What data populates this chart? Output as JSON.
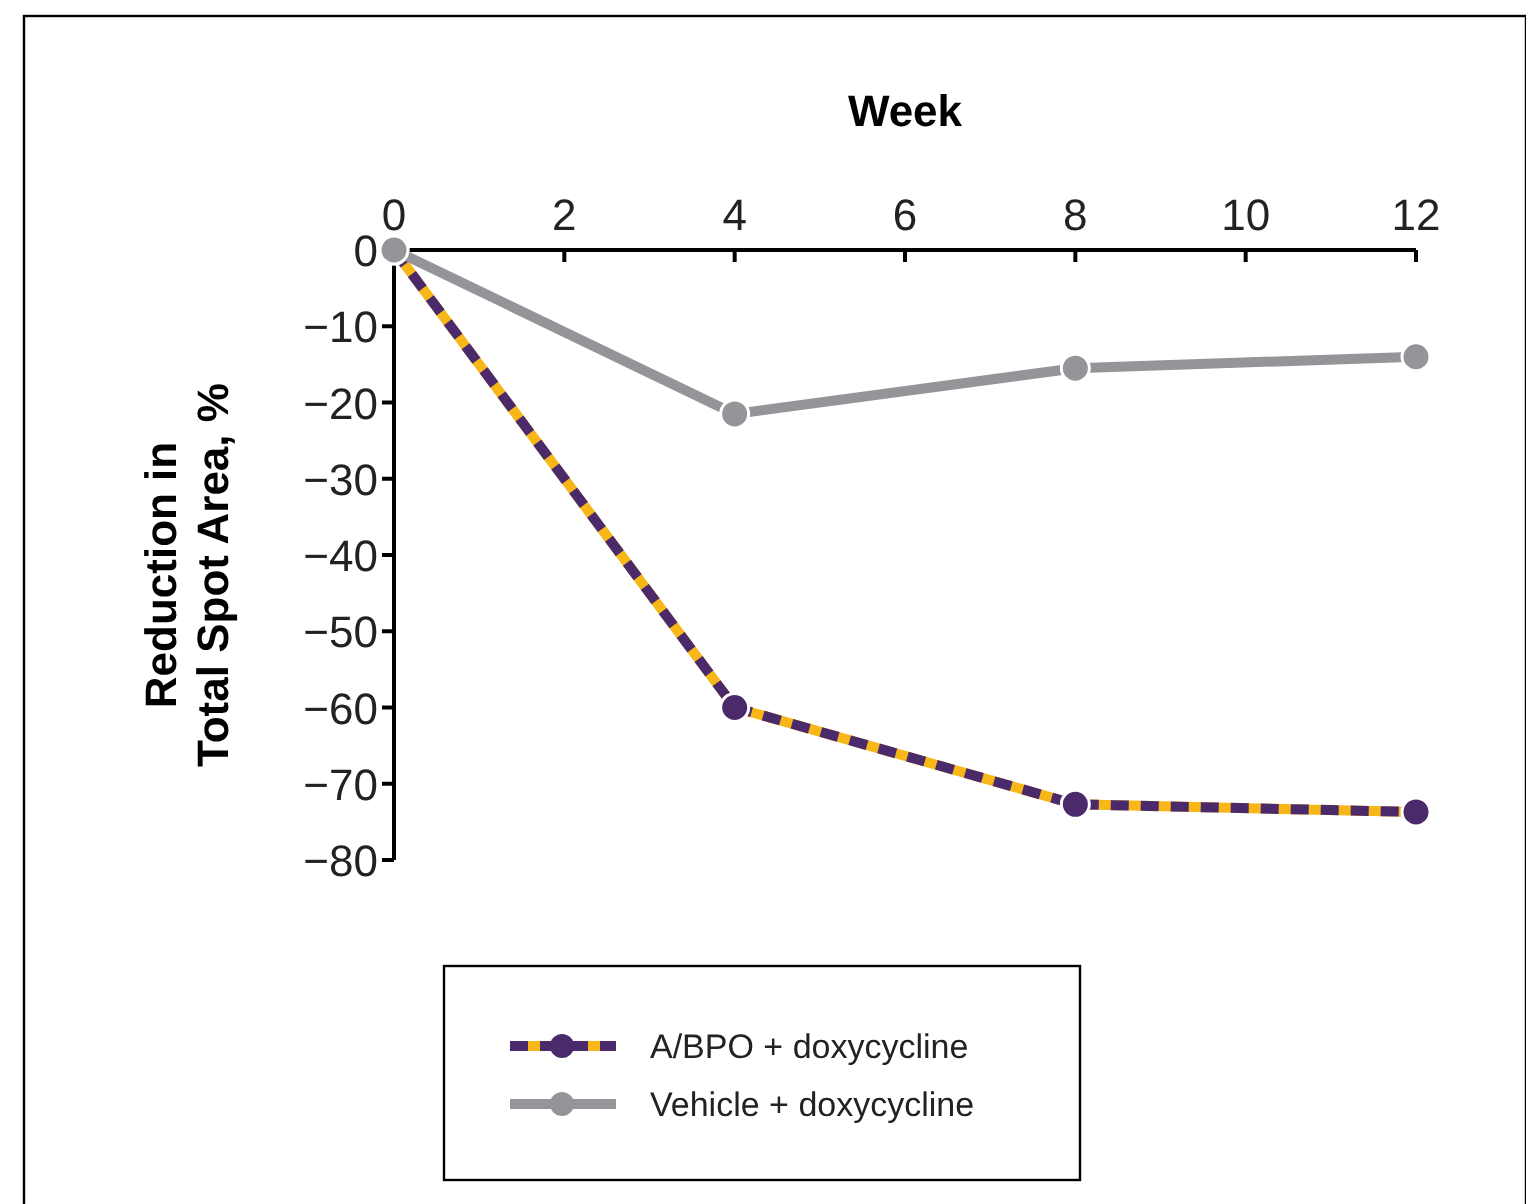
{
  "chart_data": {
    "type": "line",
    "xlabel": "Week",
    "ylabel": "Reduction in\nTotal Spot Area, %",
    "x": [
      0,
      4,
      8,
      12
    ],
    "xlim": [
      0,
      12
    ],
    "xticks": [
      0,
      2,
      4,
      6,
      8,
      10,
      12
    ],
    "ylim": [
      -80,
      0
    ],
    "yticks": [
      {
        "value": -80,
        "label": "−80"
      },
      {
        "value": -70,
        "label": "−70"
      },
      {
        "value": -60,
        "label": "−60"
      },
      {
        "value": -50,
        "label": "−50"
      },
      {
        "value": -40,
        "label": "−40"
      },
      {
        "value": -30,
        "label": "−30"
      },
      {
        "value": -20,
        "label": "−20"
      },
      {
        "value": -10,
        "label": "−10"
      },
      0
    ],
    "series": [
      {
        "name": "A/BPO + doxycycline",
        "color": "#4b2a6b",
        "line_style": "dashed",
        "values": [
          0,
          -60,
          -72.7,
          -73.7
        ]
      },
      {
        "name": "Vehicle + doxycycline",
        "color": "#939598",
        "values": [
          0,
          -21.5,
          -15.5,
          -14
        ]
      }
    ],
    "marker": "circle",
    "grid": false,
    "legend": "bottom"
  }
}
